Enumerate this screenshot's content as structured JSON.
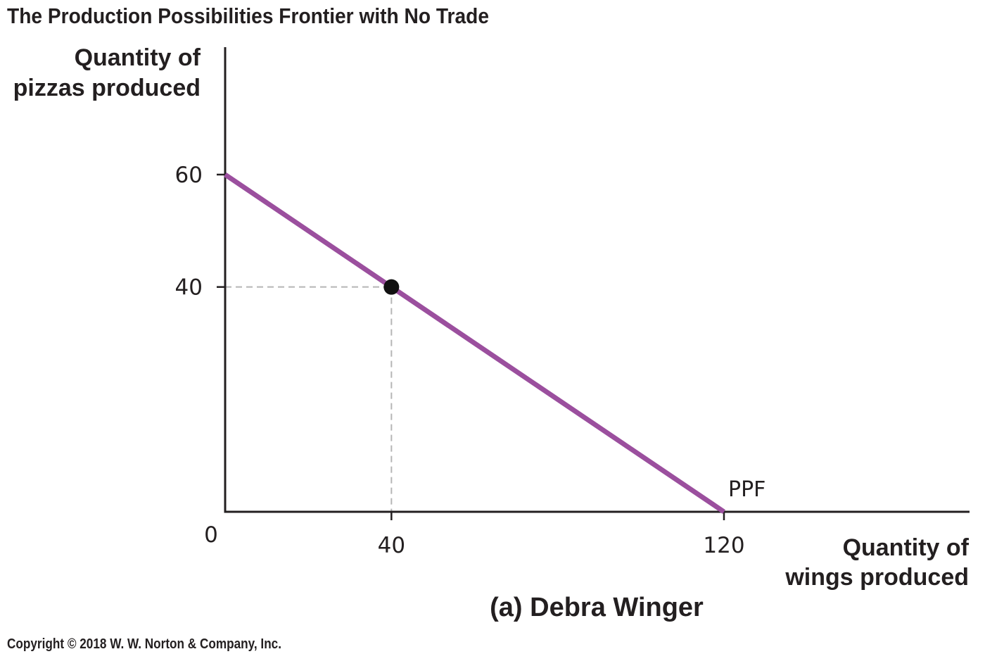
{
  "figure": {
    "title": "The Production Possibilities Frontier with No Trade",
    "panel_caption": "(a) Debra Winger",
    "copyright": "Copyright © 2018 W. W. Norton & Company, Inc."
  },
  "chart_data": {
    "type": "line",
    "title": "The Production Possibilities Frontier with No Trade",
    "subtitle": "(a) Debra Winger",
    "xlabel_lines": [
      "Quantity of",
      "wings produced"
    ],
    "ylabel_lines": [
      "Quantity of",
      "pizzas produced"
    ],
    "xlim": [
      0,
      150
    ],
    "ylim": [
      0,
      80
    ],
    "origin_label": "0",
    "x_ticks": [
      40,
      120
    ],
    "x_tick_labels": [
      "40",
      "120"
    ],
    "y_ticks": [
      40,
      60
    ],
    "y_tick_labels": [
      "40",
      "60"
    ],
    "grid": false,
    "series": [
      {
        "name": "PPF",
        "color": "#9b4f9e",
        "points": [
          {
            "x": 0,
            "y": 60
          },
          {
            "x": 120,
            "y": 0
          }
        ]
      }
    ],
    "highlight_point": {
      "x": 40,
      "y": 40,
      "color": "#111111"
    },
    "guide_line_color": "#b5b5b5",
    "axis_color": "#231f20"
  }
}
